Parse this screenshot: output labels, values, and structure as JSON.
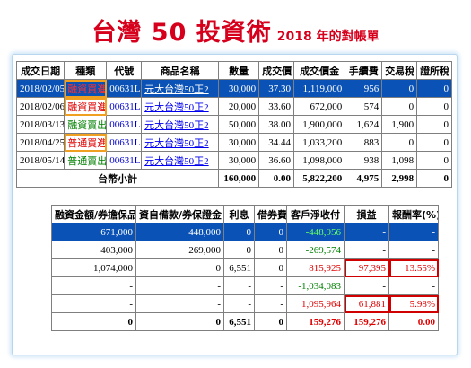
{
  "title": {
    "main": "台灣 50 投資術",
    "sub": "2018 年的對帳單"
  },
  "trade_table": {
    "headers": [
      "成交日期",
      "種類",
      "代號",
      "商品名稱",
      "數量",
      "成交價",
      "成交價金",
      "手續費",
      "交易稅",
      "證所稅"
    ],
    "rows": [
      {
        "date": "2018/02/05",
        "type": "融資買進",
        "code": "00631L",
        "product": "元大台灣50正2",
        "qty": "30,000",
        "price": "37.30",
        "amount": "1,119,000",
        "fee": "956",
        "tax": "0",
        "stax": "0"
      },
      {
        "date": "2018/02/06",
        "type": "融資買進",
        "code": "00631L",
        "product": "元大台灣50正2",
        "qty": "20,000",
        "price": "33.60",
        "amount": "672,000",
        "fee": "574",
        "tax": "0",
        "stax": "0"
      },
      {
        "date": "2018/03/13",
        "type": "融資賣出",
        "code": "00631L",
        "product": "元大台灣50正2",
        "qty": "50,000",
        "price": "38.00",
        "amount": "1,900,000",
        "fee": "1,624",
        "tax": "1,900",
        "stax": "0"
      },
      {
        "date": "2018/04/25",
        "type": "普通買進",
        "code": "00631L",
        "product": "元大台灣50正2",
        "qty": "30,000",
        "price": "34.44",
        "amount": "1,033,200",
        "fee": "883",
        "tax": "0",
        "stax": "0"
      },
      {
        "date": "2018/05/14",
        "type": "普通賣出",
        "code": "00631L",
        "product": "元大台灣50正2",
        "qty": "30,000",
        "price": "36.60",
        "amount": "1,098,000",
        "fee": "938",
        "tax": "1,098",
        "stax": "0"
      }
    ],
    "total": {
      "label": "台幣小計",
      "qty": "160,000",
      "price": "0.00",
      "amount": "5,822,200",
      "fee": "4,975",
      "tax": "2,998",
      "stax": "0"
    }
  },
  "settle_table": {
    "headers": [
      "融資金額/券擔保品",
      "資自備款/券保證金",
      "利息",
      "借券費",
      "客戶淨收付",
      "損益",
      "報酬率(%)"
    ],
    "rows": [
      {
        "a": "671,000",
        "b": "448,000",
        "c": "0",
        "d": "0",
        "e": "-448,956",
        "f": "-",
        "g": "-"
      },
      {
        "a": "403,000",
        "b": "269,000",
        "c": "0",
        "d": "0",
        "e": "-269,574",
        "f": "-",
        "g": "-"
      },
      {
        "a": "1,074,000",
        "b": "0",
        "c": "6,551",
        "d": "0",
        "e": "815,925",
        "f": "97,395",
        "g": "13.55%"
      },
      {
        "a": "-",
        "b": "-",
        "c": "-",
        "d": "-",
        "e": "-1,034,083",
        "f": "-",
        "g": "-"
      },
      {
        "a": "-",
        "b": "-",
        "c": "-",
        "d": "-",
        "e": "1,095,964",
        "f": "61,881",
        "g": "5.98%"
      }
    ],
    "total": {
      "a": "0",
      "b": "0",
      "c": "6,551",
      "d": "0",
      "e": "159,276",
      "f": "159,276",
      "g": "0.00"
    }
  },
  "colors": {
    "title_red": "#d6001c",
    "selected_row": "#0a52b5",
    "buy": "#e00000",
    "sell": "#008000"
  }
}
